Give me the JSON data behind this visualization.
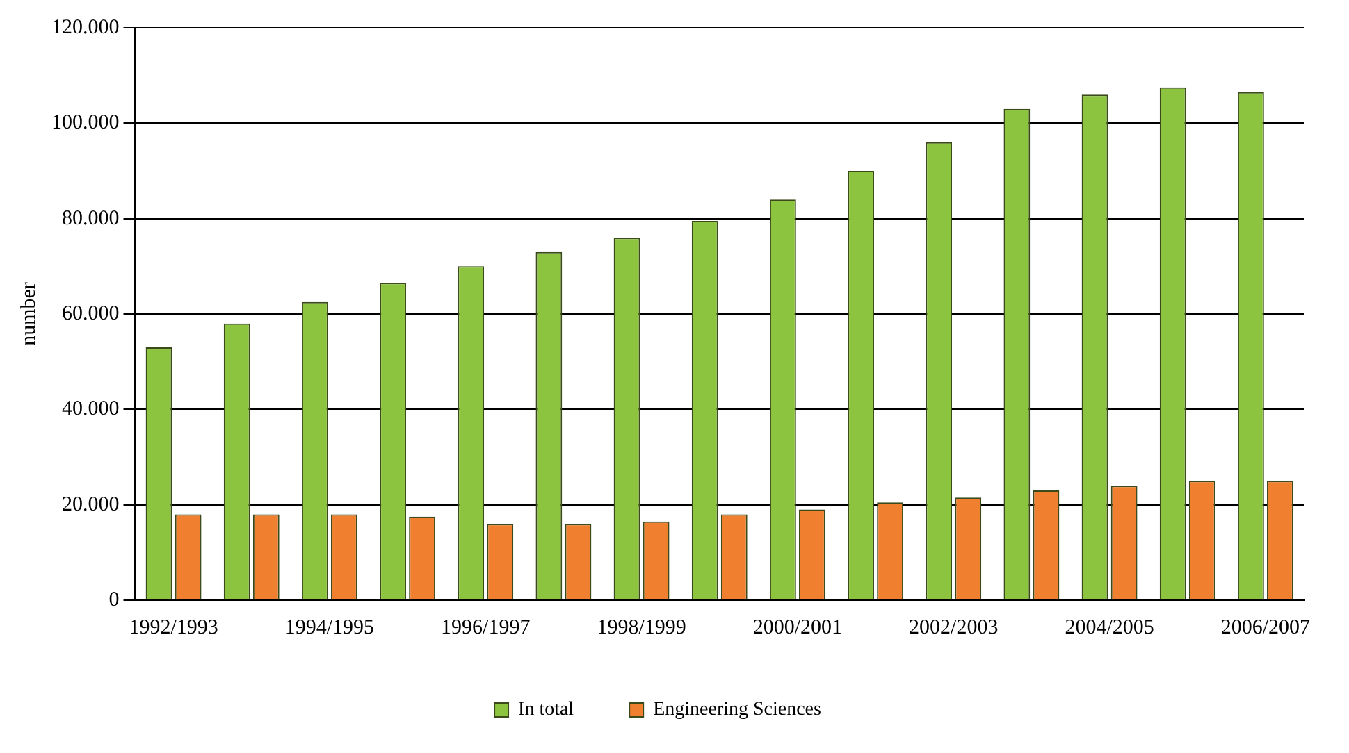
{
  "chart_data": {
    "type": "bar",
    "ylabel": "number",
    "categories": [
      "1992/1993",
      null,
      "1994/1995",
      null,
      "1996/1997",
      null,
      "1998/1999",
      null,
      "2000/2001",
      null,
      "2002/2003",
      null,
      "2004/2005",
      null,
      "2006/2007"
    ],
    "series": [
      {
        "name": "In total",
        "color": "#8dc43f",
        "values": [
          53000,
          58000,
          62500,
          66500,
          70000,
          73000,
          76000,
          79500,
          84000,
          90000,
          96000,
          103000,
          106000,
          107500,
          106500
        ]
      },
      {
        "name": "Engineering Sciences",
        "color": "#f07f2f",
        "values": [
          18000,
          18000,
          18000,
          17500,
          16000,
          16000,
          16500,
          18000,
          19000,
          20500,
          21500,
          23000,
          24000,
          25000,
          25000
        ]
      }
    ],
    "ylim": [
      0,
      120000
    ],
    "yticks": [
      {
        "value": 0,
        "label": "0"
      },
      {
        "value": 20000,
        "label": "20.000"
      },
      {
        "value": 40000,
        "label": "40.000"
      },
      {
        "value": 60000,
        "label": "60.000"
      },
      {
        "value": 80000,
        "label": "80.000"
      },
      {
        "value": 100000,
        "label": "100.000"
      },
      {
        "value": 120000,
        "label": "120.000"
      }
    ],
    "grid": "y",
    "legend": "bottom"
  }
}
